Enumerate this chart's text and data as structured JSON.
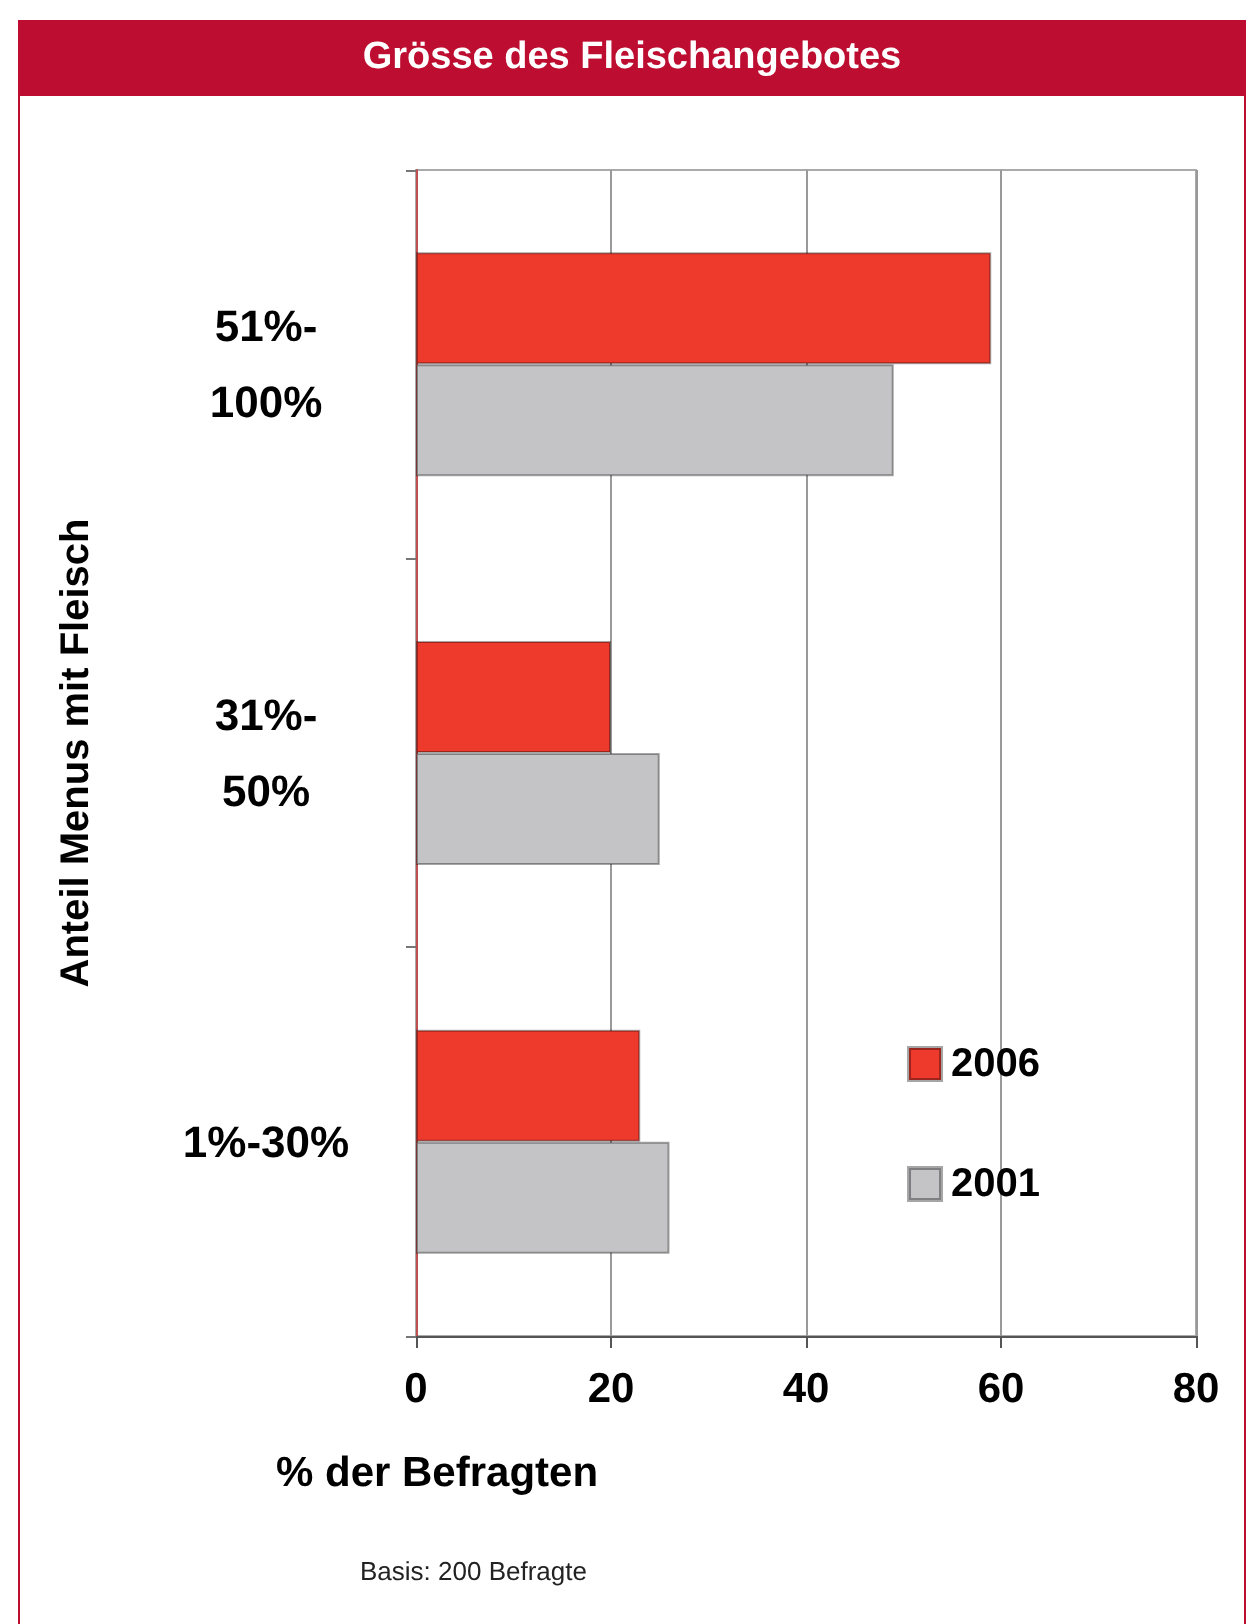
{
  "chart_data": {
    "type": "bar",
    "orientation": "horizontal",
    "title": "Grösse des Fleischangebotes",
    "ylabel": "Anteil Menus mit Fleisch",
    "xlabel": "% der Befragten",
    "categories": [
      "51%-\n100%",
      "31%-\n50%",
      "1%-30%"
    ],
    "series": [
      {
        "name": "2006",
        "color": "#ee3a2c",
        "values": [
          59,
          20,
          23
        ]
      },
      {
        "name": "2001",
        "color": "#c4c4c6",
        "values": [
          49,
          25,
          26
        ]
      }
    ],
    "xlim": [
      0,
      80
    ],
    "xticks": [
      0,
      20,
      40,
      60,
      80
    ],
    "grid": "x",
    "legend": "bottom right",
    "annotations": [
      "Basis: 200 Befragte"
    ]
  }
}
